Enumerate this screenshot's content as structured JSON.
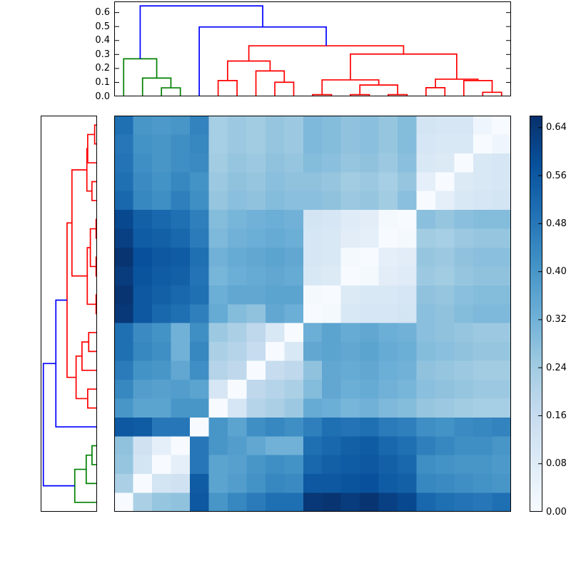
{
  "chart_data": {
    "type": "heatmap",
    "subtype": "clustermap-with-dendrograms",
    "title": "",
    "n_leaves": 21,
    "vmin": 0.0,
    "vmax": 0.66,
    "grid": false,
    "row_display_order": "reversed-columns",
    "colormap_name": "Blues",
    "colormap_stops": [
      [
        0.0,
        247,
        251,
        255
      ],
      [
        0.125,
        222,
        235,
        247
      ],
      [
        0.25,
        198,
        219,
        239
      ],
      [
        0.375,
        158,
        202,
        225
      ],
      [
        0.5,
        107,
        174,
        214
      ],
      [
        0.625,
        66,
        146,
        198
      ],
      [
        0.75,
        33,
        113,
        181
      ],
      [
        0.875,
        8,
        81,
        156
      ],
      [
        1.0,
        8,
        48,
        107
      ]
    ],
    "matrix": [
      [
        0.0,
        0.22,
        0.26,
        0.27,
        0.56,
        0.4,
        0.44,
        0.47,
        0.5,
        0.5,
        0.64,
        0.65,
        0.63,
        0.65,
        0.62,
        0.6,
        0.52,
        0.5,
        0.49,
        0.48,
        0.5
      ],
      [
        0.22,
        0.0,
        0.12,
        0.13,
        0.55,
        0.36,
        0.38,
        0.41,
        0.44,
        0.43,
        0.56,
        0.56,
        0.57,
        0.58,
        0.55,
        0.54,
        0.44,
        0.43,
        0.42,
        0.41,
        0.4
      ],
      [
        0.26,
        0.12,
        0.0,
        0.06,
        0.48,
        0.36,
        0.37,
        0.4,
        0.42,
        0.41,
        0.52,
        0.54,
        0.55,
        0.56,
        0.54,
        0.52,
        0.42,
        0.41,
        0.4,
        0.4,
        0.39
      ],
      [
        0.27,
        0.13,
        0.06,
        0.0,
        0.48,
        0.4,
        0.38,
        0.35,
        0.32,
        0.32,
        0.5,
        0.52,
        0.54,
        0.55,
        0.52,
        0.5,
        0.46,
        0.44,
        0.42,
        0.42,
        0.4
      ],
      [
        0.56,
        0.55,
        0.48,
        0.48,
        0.0,
        0.4,
        0.36,
        0.42,
        0.44,
        0.42,
        0.46,
        0.5,
        0.49,
        0.5,
        0.47,
        0.46,
        0.42,
        0.41,
        0.43,
        0.44,
        0.45
      ],
      [
        0.4,
        0.36,
        0.36,
        0.4,
        0.4,
        0.0,
        0.11,
        0.2,
        0.22,
        0.25,
        0.34,
        0.33,
        0.31,
        0.32,
        0.3,
        0.29,
        0.26,
        0.25,
        0.24,
        0.23,
        0.23
      ],
      [
        0.44,
        0.38,
        0.37,
        0.38,
        0.36,
        0.11,
        0.0,
        0.18,
        0.2,
        0.22,
        0.29,
        0.35,
        0.33,
        0.34,
        0.32,
        0.31,
        0.28,
        0.27,
        0.26,
        0.25,
        0.25
      ],
      [
        0.47,
        0.41,
        0.4,
        0.35,
        0.42,
        0.2,
        0.18,
        0.0,
        0.16,
        0.18,
        0.27,
        0.35,
        0.34,
        0.35,
        0.33,
        0.32,
        0.27,
        0.26,
        0.25,
        0.24,
        0.24
      ],
      [
        0.5,
        0.44,
        0.42,
        0.32,
        0.44,
        0.22,
        0.2,
        0.16,
        0.0,
        0.1,
        0.35,
        0.36,
        0.35,
        0.36,
        0.34,
        0.33,
        0.29,
        0.28,
        0.27,
        0.26,
        0.26
      ],
      [
        0.5,
        0.43,
        0.41,
        0.32,
        0.42,
        0.25,
        0.22,
        0.18,
        0.1,
        0.0,
        0.33,
        0.36,
        0.34,
        0.35,
        0.33,
        0.32,
        0.28,
        0.27,
        0.26,
        0.25,
        0.25
      ],
      [
        0.64,
        0.56,
        0.52,
        0.5,
        0.46,
        0.34,
        0.29,
        0.27,
        0.35,
        0.33,
        0.0,
        0.01,
        0.1,
        0.11,
        0.11,
        0.12,
        0.28,
        0.27,
        0.29,
        0.3,
        0.3
      ],
      [
        0.65,
        0.56,
        0.54,
        0.52,
        0.5,
        0.33,
        0.35,
        0.35,
        0.36,
        0.36,
        0.01,
        0.0,
        0.09,
        0.1,
        0.1,
        0.11,
        0.27,
        0.26,
        0.28,
        0.29,
        0.29
      ],
      [
        0.63,
        0.57,
        0.55,
        0.54,
        0.49,
        0.31,
        0.33,
        0.34,
        0.35,
        0.34,
        0.1,
        0.09,
        0.0,
        0.01,
        0.07,
        0.08,
        0.25,
        0.24,
        0.26,
        0.27,
        0.27
      ],
      [
        0.65,
        0.58,
        0.56,
        0.55,
        0.5,
        0.32,
        0.34,
        0.35,
        0.36,
        0.35,
        0.11,
        0.1,
        0.01,
        0.0,
        0.06,
        0.07,
        0.26,
        0.25,
        0.27,
        0.28,
        0.28
      ],
      [
        0.62,
        0.55,
        0.54,
        0.52,
        0.47,
        0.3,
        0.32,
        0.33,
        0.34,
        0.33,
        0.11,
        0.1,
        0.07,
        0.06,
        0.0,
        0.01,
        0.24,
        0.23,
        0.25,
        0.26,
        0.26
      ],
      [
        0.6,
        0.54,
        0.52,
        0.5,
        0.46,
        0.29,
        0.31,
        0.32,
        0.33,
        0.32,
        0.12,
        0.11,
        0.08,
        0.07,
        0.01,
        0.0,
        0.28,
        0.26,
        0.28,
        0.29,
        0.29
      ],
      [
        0.52,
        0.44,
        0.42,
        0.46,
        0.42,
        0.26,
        0.28,
        0.27,
        0.29,
        0.28,
        0.28,
        0.27,
        0.25,
        0.26,
        0.24,
        0.28,
        0.0,
        0.06,
        0.1,
        0.11,
        0.12
      ],
      [
        0.5,
        0.43,
        0.41,
        0.44,
        0.41,
        0.25,
        0.27,
        0.26,
        0.28,
        0.27,
        0.27,
        0.26,
        0.24,
        0.25,
        0.23,
        0.26,
        0.06,
        0.0,
        0.09,
        0.1,
        0.11
      ],
      [
        0.49,
        0.42,
        0.4,
        0.42,
        0.43,
        0.24,
        0.26,
        0.25,
        0.27,
        0.26,
        0.29,
        0.28,
        0.26,
        0.27,
        0.25,
        0.28,
        0.1,
        0.09,
        0.0,
        0.1,
        0.11
      ],
      [
        0.48,
        0.41,
        0.4,
        0.42,
        0.44,
        0.23,
        0.25,
        0.24,
        0.26,
        0.25,
        0.3,
        0.29,
        0.27,
        0.28,
        0.26,
        0.29,
        0.11,
        0.1,
        0.1,
        0.0,
        0.03
      ],
      [
        0.5,
        0.4,
        0.39,
        0.4,
        0.45,
        0.23,
        0.25,
        0.24,
        0.26,
        0.25,
        0.3,
        0.29,
        0.27,
        0.28,
        0.26,
        0.29,
        0.12,
        0.11,
        0.11,
        0.03,
        0.0
      ]
    ],
    "top_axis": {
      "tick_values": [
        0.0,
        0.1,
        0.2,
        0.3,
        0.4,
        0.5,
        0.6
      ],
      "tick_labels": [
        "0.0",
        "0.1",
        "0.2",
        "0.3",
        "0.4",
        "0.5",
        "0.6"
      ],
      "max": 0.68
    },
    "left_axis": {
      "max": 0.68
    },
    "colorbar": {
      "tick_values": [
        0.0,
        0.08,
        0.16,
        0.24,
        0.32,
        0.4,
        0.48,
        0.56,
        0.64
      ],
      "tick_labels": [
        "0.00",
        "0.08",
        "0.16",
        "0.24",
        "0.32",
        "0.40",
        "0.48",
        "0.56",
        "0.64"
      ]
    },
    "link_colors": {
      "g": "#008000",
      "r": "#ff0000",
      "b": "#0000ff"
    },
    "dendrogram": {
      "h": 0.648,
      "c": "b",
      "l": {
        "h": 0.269,
        "c": "g",
        "l": 0,
        "r": {
          "h": 0.131,
          "c": "g",
          "l": 1,
          "r": {
            "h": 0.061,
            "c": "g",
            "l": 2,
            "r": 3
          }
        }
      },
      "r": {
        "h": 0.497,
        "c": "b",
        "l": 4,
        "r": {
          "h": 0.362,
          "c": "r",
          "l": {
            "h": 0.253,
            "c": "r",
            "l": {
              "h": 0.113,
              "c": "r",
              "l": 5,
              "r": 6
            },
            "r": {
              "h": 0.182,
              "c": "r",
              "l": 7,
              "r": {
                "h": 0.101,
                "c": "r",
                "l": 8,
                "r": 9
              }
            }
          },
          "r": {
            "h": 0.303,
            "c": "r",
            "l": {
              "h": 0.118,
              "c": "r",
              "l": {
                "h": 0.012,
                "c": "r",
                "l": 10,
                "r": 11
              },
              "r": {
                "h": 0.081,
                "c": "r",
                "l": {
                  "h": 0.012,
                  "c": "r",
                  "l": 12,
                  "r": 13
                },
                "r": {
                  "h": 0.012,
                  "c": "r",
                  "l": 14,
                  "r": 15
                }
              }
            },
            "r": {
              "h": 0.123,
              "c": "r",
              "l": {
                "h": 0.062,
                "c": "r",
                "l": 16,
                "r": 17
              },
              "r": {
                "h": 0.113,
                "c": "r",
                "l": 18,
                "r": {
                  "h": 0.029,
                  "c": "r",
                  "l": 19,
                  "r": 20
                }
              }
            }
          }
        }
      }
    },
    "layout": {
      "frame_color": "#000000",
      "background": "#ffffff"
    }
  }
}
